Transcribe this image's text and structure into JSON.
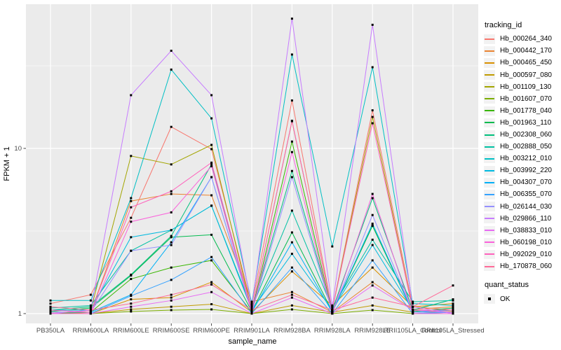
{
  "chart_data": {
    "type": "line",
    "title": "",
    "xlabel": "sample_name",
    "ylabel": "FPKM + 1",
    "y_scale": "log10",
    "ylim": [
      1,
      74
    ],
    "grid": "on",
    "legend_position": "right",
    "x_categories": [
      "PB350LA",
      "RRIM600LA",
      "RRIM600LE",
      "RRIM600SE",
      "RRIM600PE",
      "RRIM901LA",
      "RRIM928BA",
      "RRIM928LA",
      "RRIM928LE",
      "RRII105LA_Control",
      "RRII105LA_Stressed"
    ],
    "y_ticks": [
      {
        "label": "1",
        "value": 1
      },
      {
        "label": "10",
        "value": 10
      }
    ],
    "y_minor_gridlines": [
      3.1623,
      31.623
    ],
    "legend_title": "tracking_id",
    "quant_legend": {
      "title": "quant_status",
      "items": [
        {
          "label": "OK",
          "marker": "filled-square"
        }
      ]
    },
    "point_marker": "filled-square",
    "series": [
      {
        "name": "Hb_000264_340",
        "color": "#F8766D",
        "values": [
          1.15,
          1.3,
          3.8,
          13.5,
          9.9,
          1.12,
          19.5,
          1.05,
          17.0,
          1.1,
          1.05
        ]
      },
      {
        "name": "Hb_000442_170",
        "color": "#EA8331",
        "values": [
          1.0,
          1.02,
          4.8,
          5.3,
          5.2,
          1.18,
          1.35,
          1.02,
          1.55,
          1.06,
          1.1
        ]
      },
      {
        "name": "Hb_000465_450",
        "color": "#D89000",
        "values": [
          1.02,
          1.0,
          1.22,
          1.25,
          1.55,
          1.02,
          1.8,
          1.12,
          1.9,
          1.1,
          1.15
        ]
      },
      {
        "name": "Hb_000597_080",
        "color": "#C09B00",
        "values": [
          1.0,
          1.0,
          1.06,
          1.1,
          1.14,
          1.0,
          1.12,
          1.02,
          1.12,
          1.02,
          1.03
        ]
      },
      {
        "name": "Hb_001109_130",
        "color": "#A3A500",
        "values": [
          1.0,
          1.05,
          9.0,
          8.0,
          10.5,
          1.05,
          14.6,
          1.05,
          15.5,
          1.05,
          1.02
        ]
      },
      {
        "name": "Hb_001607_070",
        "color": "#7CAE00",
        "values": [
          1.0,
          1.0,
          1.03,
          1.05,
          1.06,
          1.0,
          1.06,
          1.0,
          1.05,
          1.0,
          1.02
        ]
      },
      {
        "name": "Hb_001778_040",
        "color": "#39B600",
        "values": [
          1.0,
          1.02,
          1.62,
          1.9,
          2.1,
          1.02,
          11.0,
          1.02,
          3.4,
          1.02,
          1.02
        ]
      },
      {
        "name": "Hb_001963_110",
        "color": "#00BB4E",
        "values": [
          1.03,
          1.08,
          1.7,
          2.9,
          3.0,
          1.03,
          3.1,
          1.03,
          3.4,
          1.03,
          1.08
        ]
      },
      {
        "name": "Hb_002308_060",
        "color": "#00BF7D",
        "values": [
          1.05,
          1.1,
          1.72,
          2.95,
          8.0,
          1.05,
          7.3,
          1.05,
          5.0,
          1.05,
          1.22
        ]
      },
      {
        "name": "Hb_002888_050",
        "color": "#00C1A3",
        "values": [
          1.08,
          1.12,
          2.4,
          3.2,
          4.5,
          1.08,
          4.2,
          1.08,
          2.8,
          1.18,
          1.2
        ]
      },
      {
        "name": "Hb_003212_010",
        "color": "#00BFC4",
        "values": [
          1.2,
          1.2,
          5.0,
          30.0,
          15.2,
          1.15,
          37.0,
          2.55,
          31.0,
          1.15,
          1.12
        ]
      },
      {
        "name": "Hb_003992_220",
        "color": "#00BAE0",
        "values": [
          1.05,
          1.05,
          2.9,
          3.2,
          4.5,
          1.05,
          2.3,
          1.05,
          2.6,
          1.05,
          1.05
        ]
      },
      {
        "name": "Hb_004307_070",
        "color": "#00B0F6",
        "values": [
          1.02,
          1.02,
          1.3,
          2.7,
          6.7,
          1.02,
          2.7,
          1.02,
          3.5,
          1.02,
          1.05
        ]
      },
      {
        "name": "Hb_006355_070",
        "color": "#35A2FF",
        "values": [
          1.0,
          1.0,
          1.28,
          1.6,
          2.2,
          1.0,
          1.9,
          1.0,
          2.1,
          1.0,
          1.02
        ]
      },
      {
        "name": "Hb_026144_030",
        "color": "#9590FF",
        "values": [
          1.02,
          1.02,
          2.4,
          2.6,
          6.7,
          1.02,
          6.7,
          1.02,
          3.95,
          1.02,
          1.02
        ]
      },
      {
        "name": "Hb_029866_110",
        "color": "#C77CFF",
        "values": [
          1.0,
          1.05,
          21.0,
          39.0,
          21.0,
          1.1,
          61.0,
          1.1,
          56.0,
          1.1,
          1.0
        ]
      },
      {
        "name": "Hb_038833_010",
        "color": "#E76BF3",
        "values": [
          1.0,
          1.0,
          1.1,
          1.2,
          1.35,
          1.0,
          1.25,
          1.0,
          1.48,
          1.05,
          1.02
        ]
      },
      {
        "name": "Hb_060198_010",
        "color": "#FA62DB",
        "values": [
          1.0,
          1.0,
          3.6,
          4.1,
          7.8,
          1.0,
          9.5,
          1.0,
          5.3,
          1.0,
          1.0
        ]
      },
      {
        "name": "Hb_092029_010",
        "color": "#FF62BC",
        "values": [
          1.05,
          1.02,
          4.4,
          5.5,
          8.2,
          1.05,
          14.7,
          1.05,
          14.2,
          1.05,
          1.05
        ]
      },
      {
        "name": "Hb_170878_060",
        "color": "#FF6A98",
        "values": [
          1.1,
          1.05,
          1.15,
          1.3,
          1.5,
          1.05,
          1.3,
          1.05,
          1.25,
          1.1,
          1.48
        ]
      }
    ],
    "colors": {
      "panel_background": "#EBEBEB",
      "gridline": "#FFFFFF",
      "tick_text": "#4D4D4D",
      "tick_mark": "#333333",
      "axis_title": "#000000",
      "point": "#000000",
      "legend_key_background": "#F2F2F2"
    }
  }
}
